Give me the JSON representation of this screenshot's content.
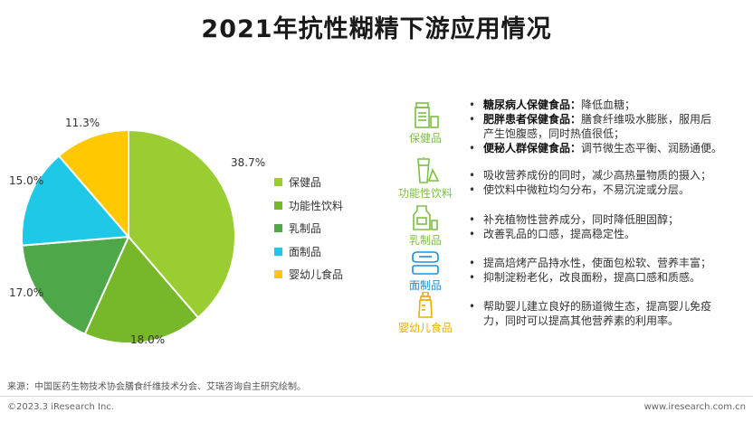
{
  "title": "2021年抗性糊精下游应用情况",
  "colors": {
    "accent": "#7cc043",
    "series": [
      "#9acd32",
      "#76b82a",
      "#4ea849",
      "#1ec8e6",
      "#ffc800"
    ]
  },
  "chart_data": {
    "type": "pie",
    "title": "",
    "labels": [
      "保健品",
      "功能性饮料",
      "乳制品",
      "面制品",
      "婴幼儿食品"
    ],
    "values": [
      38.7,
      18.0,
      17.0,
      15.0,
      11.3
    ],
    "value_labels": [
      "38.7%",
      "18.0%",
      "17.0%",
      "15.0%",
      "11.3%"
    ],
    "legend_position": "right"
  },
  "categories": [
    {
      "icon": "health-product-icon",
      "label": "保健品"
    },
    {
      "icon": "functional-drink-icon",
      "label": "功能性饮料"
    },
    {
      "icon": "dairy-icon",
      "label": "乳制品"
    },
    {
      "icon": "flour-product-icon",
      "label": "面制品"
    },
    {
      "icon": "baby-bottle-icon",
      "label": "婴幼儿食品"
    }
  ],
  "descriptions": {
    "health": [
      {
        "bold": "糖尿病人保健食品：",
        "text": "降低血糖；"
      },
      {
        "bold": "肥胖患者保健食品：",
        "text": "膳食纤维吸水膨胀，服用后",
        "cont": "产生饱腹感，同时热值很低；"
      },
      {
        "bold": "便秘人群保健食品：",
        "text": "调节微生态平衡、润肠通便。"
      }
    ],
    "drink": [
      "吸收营养成份的同时，减少高热量物质的摄入；",
      "使饮料中微粒均匀分布，不易沉淀或分层。"
    ],
    "dairy": [
      "补充植物性营养成分，同时降低胆固醇；",
      "改善乳品的口感，提高稳定性。"
    ],
    "flour": [
      "提高焙烤产品持水性，使面包松软、营养丰富；",
      "抑制淀粉老化，改良面粉，提高口感和质感。"
    ],
    "baby": {
      "text": "帮助婴儿建立良好的肠道微生态，提高婴儿免疫",
      "cont": "力，同时可以提高其他营养素的利用率。"
    }
  },
  "source": "来源：中国医药生物技术协会膳食纤维技术分会、艾瑞咨询自主研究绘制。",
  "copyright": "©2023.3 iResearch Inc.",
  "website": "www.iresearch.com.cn"
}
